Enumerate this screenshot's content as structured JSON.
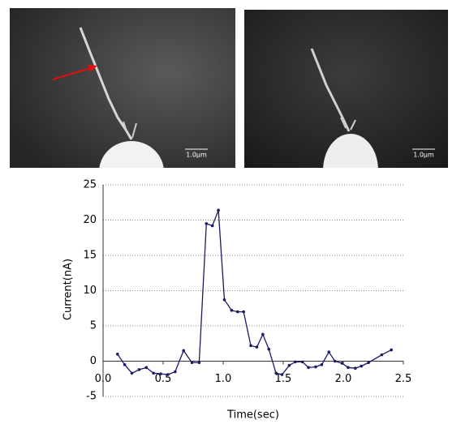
{
  "images": [
    {
      "scale_bar": "1.0μm"
    },
    {
      "scale_bar": "1.0μm"
    }
  ],
  "chart_data": {
    "type": "line",
    "xlabel": "Time(sec)",
    "ylabel": "Current(nA)",
    "x": [
      0.12,
      0.18,
      0.24,
      0.3,
      0.36,
      0.42,
      0.48,
      0.54,
      0.6,
      0.67,
      0.74,
      0.8,
      0.86,
      0.91,
      0.96,
      1.01,
      1.07,
      1.12,
      1.17,
      1.23,
      1.28,
      1.33,
      1.38,
      1.44,
      1.49,
      1.55,
      1.6,
      1.66,
      1.71,
      1.77,
      1.82,
      1.88,
      1.93,
      1.99,
      2.04,
      2.1,
      2.15,
      2.21,
      2.32,
      2.4
    ],
    "series": [
      {
        "color": "#1a1a66",
        "values": [
          1.0,
          -0.5,
          -1.7,
          -1.2,
          -0.9,
          -1.7,
          -1.8,
          -1.9,
          -1.5,
          1.5,
          -0.2,
          -0.2,
          19.5,
          19.2,
          21.4,
          8.7,
          7.2,
          7.0,
          7.0,
          2.2,
          2.0,
          3.8,
          1.7,
          -1.7,
          -1.9,
          -0.6,
          -0.1,
          -0.1,
          -0.9,
          -0.8,
          -0.5,
          1.3,
          0.0,
          -0.3,
          -0.9,
          -1.0,
          -0.7,
          -0.2,
          0.9,
          1.6
        ]
      }
    ],
    "xlim": [
      0,
      2.5
    ],
    "xticks": [
      {
        "value": 0,
        "label": "0.0"
      },
      0.5,
      {
        "value": 1,
        "label": "1.0"
      },
      1.5,
      {
        "value": 2,
        "label": "2.0"
      },
      2.5
    ],
    "ylim": [
      -5,
      25
    ],
    "yticks": [
      -5,
      0,
      5,
      10,
      15,
      20,
      25
    ],
    "grid": true
  }
}
